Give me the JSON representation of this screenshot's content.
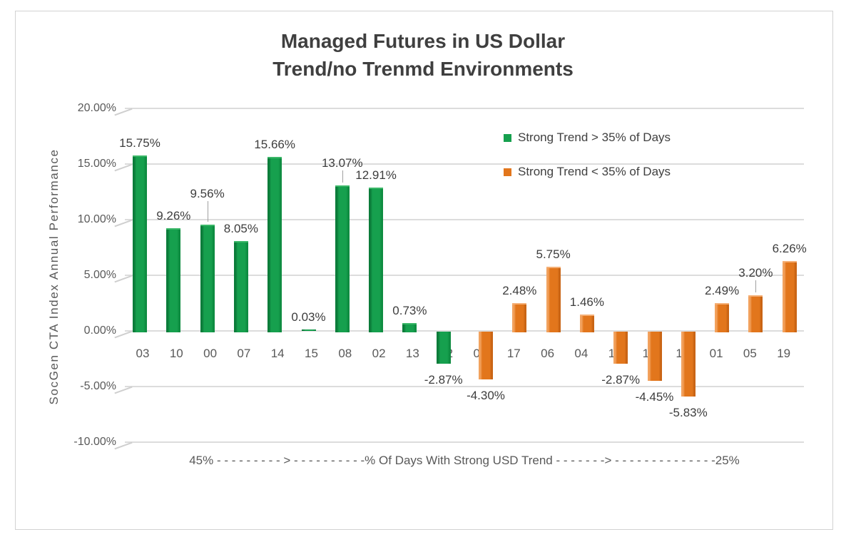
{
  "window": {
    "background": "#ffffff",
    "frame_border_color": "#d2d2d2"
  },
  "chart_data": {
    "type": "bar",
    "title_lines": [
      "Managed Futures in US Dollar",
      "Trend/no Trenmd Environments"
    ],
    "ylabel": "SocGen CTA Index Annual Performance",
    "ylim": [
      -10,
      20
    ],
    "grid": true,
    "yticks": [
      {
        "value": 20,
        "label": "20.00%"
      },
      {
        "value": 15,
        "label": "15.00%"
      },
      {
        "value": 10,
        "label": "10.00%"
      },
      {
        "value": 5,
        "label": "5.00%"
      },
      {
        "value": 0,
        "label": "0.00%"
      },
      {
        "value": -5,
        "label": "-5.00%"
      },
      {
        "value": -10,
        "label": "-10.00%"
      }
    ],
    "legend_position": "upper-right-inside",
    "legend": [
      {
        "label": "Strong Trend > 35% of Days",
        "series": "green",
        "color": "#16a04e"
      },
      {
        "label": "Strong Trend < 35% of Days",
        "series": "orange",
        "color": "#e2761c"
      }
    ],
    "series_colors": {
      "green": {
        "main": "#16a04e",
        "edge_dark": "#0b7c3a",
        "edge_mid": "#0e8c41",
        "cap_light": "#3bb768"
      },
      "orange": {
        "main": "#e2761c",
        "edge_dark": "#c96414",
        "highlight": "#f2a25e",
        "cap_light": "#f5b077"
      }
    },
    "categories": [
      "03",
      "10",
      "00",
      "07",
      "14",
      "15",
      "08",
      "02",
      "13",
      "12",
      "09",
      "17",
      "06",
      "04",
      "16",
      "11",
      "18",
      "01",
      "05",
      "19"
    ],
    "bars": [
      {
        "category": "03",
        "value": 15.75,
        "label": "15.75%",
        "series": "green"
      },
      {
        "category": "10",
        "value": 9.26,
        "label": "9.26%",
        "series": "green"
      },
      {
        "category": "00",
        "value": 9.56,
        "label": "9.56%",
        "series": "green",
        "callout_lift": 26
      },
      {
        "category": "07",
        "value": 8.05,
        "label": "8.05%",
        "series": "green"
      },
      {
        "category": "14",
        "value": 15.66,
        "label": "15.66%",
        "series": "green"
      },
      {
        "category": "15",
        "value": 0.03,
        "label": "0.03%",
        "series": "green"
      },
      {
        "category": "08",
        "value": 13.07,
        "label": "13.07%",
        "series": "green",
        "callout_lift": 14
      },
      {
        "category": "02",
        "value": 12.91,
        "label": "12.91%",
        "series": "green"
      },
      {
        "category": "13",
        "value": 0.73,
        "label": "0.73%",
        "series": "green"
      },
      {
        "category": "12",
        "value": -2.87,
        "label": "-2.87%",
        "series": "green"
      },
      {
        "category": "09",
        "value": -4.3,
        "label": "-4.30%",
        "series": "orange"
      },
      {
        "category": "17",
        "value": 2.48,
        "label": "2.48%",
        "series": "orange"
      },
      {
        "category": "06",
        "value": 5.75,
        "label": "5.75%",
        "series": "orange"
      },
      {
        "category": "04",
        "value": 1.46,
        "label": "1.46%",
        "series": "orange"
      },
      {
        "category": "16",
        "value": -2.87,
        "label": "-2.87%",
        "series": "orange"
      },
      {
        "category": "11",
        "value": -4.45,
        "label": "-4.45%",
        "series": "orange"
      },
      {
        "category": "18",
        "value": -5.83,
        "label": "-5.83%",
        "series": "orange"
      },
      {
        "category": "01",
        "value": 2.49,
        "label": "2.49%",
        "series": "orange"
      },
      {
        "category": "05",
        "value": 3.2,
        "label": "3.20%",
        "series": "orange",
        "callout_lift": 14
      },
      {
        "category": "19",
        "value": 6.26,
        "label": "6.26%",
        "series": "orange"
      }
    ],
    "xaxis_annotation": "45% - - - - - - - - - > - - - - - - - - - -% Of Days With Strong USD Trend - - - - - - -> - - - - - - - - - - - - - -25%"
  }
}
